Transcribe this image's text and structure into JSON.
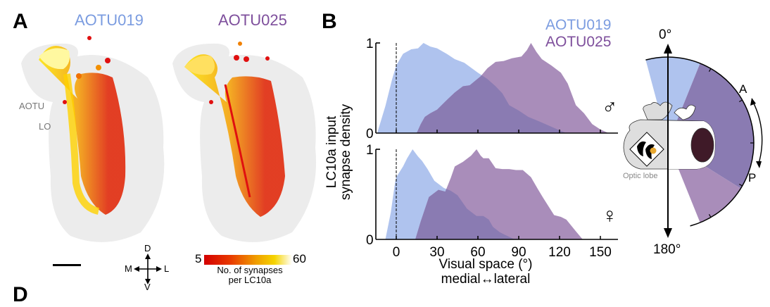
{
  "panel_a": {
    "letter": "A",
    "titles": [
      "AOTU019",
      "AOTU025"
    ],
    "region_labels": {
      "aotu": "AOTU",
      "lo": "LO"
    },
    "compass": {
      "d": "D",
      "v": "V",
      "m": "M",
      "l": "L"
    },
    "colorbar": {
      "min": "5",
      "max": "60",
      "label_line1": "No. of synapses",
      "label_line2": "per LC10a",
      "colors": [
        "#d40000",
        "#f07000",
        "#f5d000",
        "#ffffff"
      ]
    }
  },
  "panel_b": {
    "letter": "B",
    "ylabel_line1": "LC10a input",
    "ylabel_line2": "synapse density",
    "xlabel_line1": "Visual space (°)",
    "xlabel_line2": "medial↔lateral",
    "male_symbol": "♂",
    "female_symbol": "♀"
  },
  "panel_c": {
    "angle_top": "0°",
    "angle_bottom": "180°",
    "anterior": "A",
    "posterior": "P",
    "optic_lobe_label": "Optic lobe"
  },
  "panel_d": {
    "letter": "D"
  },
  "colors": {
    "aotu019_title": "#7b9ce0",
    "aotu025_title": "#7e4f9c",
    "aotu019_fill": "#afc3ee",
    "aotu025_fill": "#a98dba",
    "overlap_fill": "#8a7bb2"
  },
  "chart_data": [
    {
      "type": "area",
      "title": "Male",
      "xlabel": "Visual space (°) medial↔lateral",
      "ylabel": "LC10a input synapse density",
      "xlim": [
        -15,
        160
      ],
      "ylim": [
        0,
        1
      ],
      "xticks": [
        0,
        30,
        60,
        90,
        120,
        150
      ],
      "yticks": [
        0,
        1
      ],
      "reference_line_x": 0,
      "legend": [
        "AOTU019",
        "AOTU025"
      ],
      "legend_position": "top-right",
      "series": [
        {
          "name": "AOTU019",
          "x": [
            -14,
            -8,
            -3,
            0,
            5,
            11,
            16,
            20,
            25,
            30,
            37,
            43,
            50,
            60,
            67,
            73,
            78,
            83,
            90,
            97,
            105,
            114,
            120,
            125
          ],
          "y": [
            0,
            0.3,
            0.6,
            0.75,
            0.88,
            0.93,
            0.94,
            1.0,
            0.96,
            0.94,
            0.88,
            0.82,
            0.78,
            0.67,
            0.6,
            0.52,
            0.44,
            0.31,
            0.25,
            0.18,
            0.13,
            0.07,
            0.03,
            0.0
          ]
        },
        {
          "name": "AOTU025",
          "x": [
            15,
            18,
            21,
            25,
            30,
            36,
            43,
            49,
            54,
            58,
            62,
            67,
            73,
            79,
            85,
            92,
            96,
            99,
            103,
            107,
            114,
            121,
            126,
            132,
            138,
            144,
            150,
            156
          ],
          "y": [
            0,
            0.1,
            0.18,
            0.22,
            0.26,
            0.35,
            0.45,
            0.52,
            0.53,
            0.58,
            0.63,
            0.72,
            0.79,
            0.8,
            0.83,
            0.85,
            0.92,
            1.0,
            0.9,
            0.82,
            0.75,
            0.67,
            0.55,
            0.31,
            0.22,
            0.1,
            0.04,
            0.0
          ]
        }
      ]
    },
    {
      "type": "area",
      "title": "Female",
      "xlabel": "Visual space (°) medial↔lateral",
      "ylabel": "LC10a input synapse density",
      "xlim": [
        -15,
        160
      ],
      "ylim": [
        0,
        1
      ],
      "xticks": [
        0,
        30,
        60,
        90,
        120,
        150
      ],
      "xticklabels": [
        "0",
        "30",
        "60",
        "90",
        "120",
        "150"
      ],
      "yticks": [
        0,
        1
      ],
      "reference_line_x": 0,
      "series": [
        {
          "name": "AOTU019",
          "x": [
            -8,
            -4,
            -1,
            0,
            5,
            8,
            12,
            16,
            19,
            23,
            28,
            35,
            40,
            45,
            52,
            59,
            64,
            68,
            71,
            76,
            80,
            87
          ],
          "y": [
            0,
            0.3,
            0.62,
            0.69,
            0.81,
            0.9,
            1.0,
            0.92,
            0.87,
            0.78,
            0.65,
            0.57,
            0.54,
            0.49,
            0.34,
            0.26,
            0.26,
            0.22,
            0.14,
            0.08,
            0.05,
            0.0
          ]
        },
        {
          "name": "AOTU025",
          "x": [
            14,
            18,
            24,
            31,
            36,
            40,
            43,
            49,
            55,
            59,
            62,
            64,
            68,
            73,
            78,
            83,
            88,
            93,
            99,
            104,
            108,
            116,
            121,
            125,
            132,
            137
          ],
          "y": [
            0,
            0.2,
            0.47,
            0.55,
            0.53,
            0.68,
            0.81,
            0.86,
            0.93,
            1.0,
            0.93,
            0.9,
            0.9,
            0.79,
            0.78,
            0.78,
            0.77,
            0.77,
            0.69,
            0.56,
            0.46,
            0.27,
            0.25,
            0.22,
            0.09,
            0.0
          ]
        }
      ]
    }
  ]
}
